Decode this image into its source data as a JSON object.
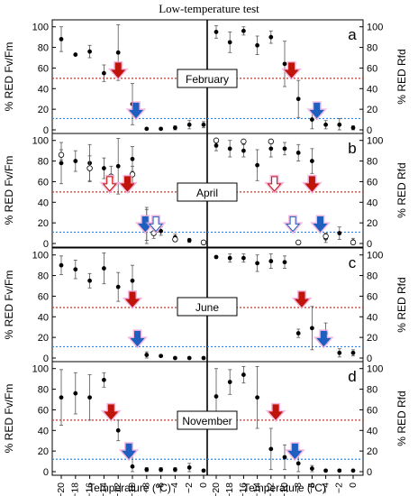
{
  "figure": {
    "title": "Low-temperature test",
    "xlabel": "Temperature (ºC)",
    "ylabel_left": "% RED Fv/Fm",
    "ylabel_right": "% RED Rfd",
    "colors": {
      "red_dotted": "#c0392b",
      "blue_dotted": "#2e86de",
      "red_arrow": "#c0140a",
      "blue_arrow": "#1f5fbf",
      "arrow_glow": "#f2a6d8"
    }
  },
  "chart_data": [
    {
      "panel_letter": "a",
      "month": "February",
      "type": "scatter",
      "x_ticks": [
        -20,
        -18,
        -16,
        -14,
        -12,
        -10,
        -8,
        -6,
        -4,
        -2,
        0
      ],
      "y_ticks": [
        0,
        20,
        40,
        60,
        80,
        100
      ],
      "ylim": [
        0,
        105
      ],
      "fvfm": [
        {
          "x": -20,
          "y": 88,
          "err": 12
        },
        {
          "x": -18,
          "y": 73,
          "err": 0
        },
        {
          "x": -16,
          "y": 76,
          "err": 6
        },
        {
          "x": -14,
          "y": 55,
          "err": 8
        },
        {
          "x": -12,
          "y": 75,
          "err": 27
        },
        {
          "x": -10,
          "y": 25,
          "err": 20
        },
        {
          "x": -8,
          "y": 1,
          "err": 0
        },
        {
          "x": -6,
          "y": 1,
          "err": 0
        },
        {
          "x": -4,
          "y": 2,
          "err": 2
        },
        {
          "x": -2,
          "y": 5,
          "err": 4
        },
        {
          "x": 0,
          "y": 5,
          "err": 3
        }
      ],
      "rfd": [
        {
          "x": -20,
          "y": 95,
          "err": 6
        },
        {
          "x": -18,
          "y": 85,
          "err": 10
        },
        {
          "x": -16,
          "y": 96,
          "err": 4
        },
        {
          "x": -14,
          "y": 82,
          "err": 9
        },
        {
          "x": -12,
          "y": 90,
          "err": 6
        },
        {
          "x": -10,
          "y": 64,
          "err": 22
        },
        {
          "x": -8,
          "y": 30,
          "err": 18
        },
        {
          "x": -6,
          "y": 10,
          "err": 9
        },
        {
          "x": -4,
          "y": 5,
          "err": 4
        },
        {
          "x": -2,
          "y": 5,
          "err": 6
        },
        {
          "x": 0,
          "y": 2,
          "err": 2
        }
      ],
      "red_line": 50,
      "blue_line": 11,
      "arrows_left": [
        {
          "x": -12,
          "color": "red"
        },
        {
          "x": -9.5,
          "color": "blue"
        }
      ],
      "arrows_right": [
        {
          "x": -9,
          "color": "red"
        },
        {
          "x": -5.3,
          "color": "blue"
        }
      ],
      "label_x": -6
    },
    {
      "panel_letter": "b",
      "month": "April",
      "type": "scatter",
      "x_ticks": [
        -20,
        -18,
        -16,
        -14,
        -12,
        -10,
        -8,
        -6,
        -4,
        -2,
        0
      ],
      "y_ticks": [
        0,
        20,
        40,
        60,
        80,
        100
      ],
      "ylim": [
        0,
        105
      ],
      "fvfm": [
        {
          "x": -20,
          "y": 78,
          "err": 20
        },
        {
          "x": -18,
          "y": 80,
          "err": 10
        },
        {
          "x": -16,
          "y": 78,
          "err": 18
        },
        {
          "x": -14,
          "y": 73,
          "err": 10
        },
        {
          "x": -12,
          "y": 75,
          "err": 27
        },
        {
          "x": -10,
          "y": 82,
          "err": 12
        },
        {
          "x": -8,
          "y": 15,
          "err": 20
        },
        {
          "x": -6,
          "y": 12,
          "err": 4
        },
        {
          "x": -4,
          "y": 6,
          "err": 3
        },
        {
          "x": -2,
          "y": 3,
          "err": 2
        },
        {
          "x": 0,
          "y": 1,
          "err": 0
        }
      ],
      "fvfm_open": [
        {
          "x": -20,
          "y": 86,
          "err": 5
        },
        {
          "x": -16,
          "y": 73,
          "err": 12
        },
        {
          "x": -13,
          "y": 65,
          "err": 10
        },
        {
          "x": -10,
          "y": 67,
          "err": 8
        },
        {
          "x": -8,
          "y": 18,
          "err": 15
        },
        {
          "x": -7,
          "y": 10,
          "err": 5
        },
        {
          "x": -4,
          "y": 4,
          "err": 2
        },
        {
          "x": 0,
          "y": 1,
          "err": 0
        }
      ],
      "rfd": [
        {
          "x": -20,
          "y": 95,
          "err": 5
        },
        {
          "x": -18,
          "y": 92,
          "err": 8
        },
        {
          "x": -16,
          "y": 90,
          "err": 6
        },
        {
          "x": -14,
          "y": 76,
          "err": 15
        },
        {
          "x": -12,
          "y": 92,
          "err": 8
        },
        {
          "x": -10,
          "y": 92,
          "err": 6
        },
        {
          "x": -8,
          "y": 88,
          "err": 8
        },
        {
          "x": -6,
          "y": 80,
          "err": 12
        },
        {
          "x": -4,
          "y": 5,
          "err": 4
        },
        {
          "x": -2,
          "y": 10,
          "err": 6
        },
        {
          "x": 0,
          "y": 2,
          "err": 3
        }
      ],
      "rfd_open": [
        {
          "x": -20,
          "y": 100,
          "err": 0
        },
        {
          "x": -16,
          "y": 99,
          "err": 0
        },
        {
          "x": -12,
          "y": 99,
          "err": 2
        },
        {
          "x": -8,
          "y": 1,
          "err": 0
        },
        {
          "x": -4,
          "y": 7,
          "err": 3
        },
        {
          "x": 0,
          "y": 1,
          "err": 0
        }
      ],
      "red_line": 50,
      "blue_line": 11,
      "arrows_left": [
        {
          "x": -13.2,
          "color": "red_open"
        },
        {
          "x": -10.7,
          "color": "red"
        },
        {
          "x": -8.2,
          "color": "blue"
        },
        {
          "x": -6.7,
          "color": "blue_open"
        }
      ],
      "arrows_right": [
        {
          "x": -11.5,
          "color": "red_open"
        },
        {
          "x": -6,
          "color": "red"
        },
        {
          "x": -8.8,
          "color": "blue_open"
        },
        {
          "x": -4.8,
          "color": "blue"
        }
      ],
      "label_x": -6
    },
    {
      "panel_letter": "c",
      "month": "June",
      "type": "scatter",
      "x_ticks": [
        -20,
        -18,
        -16,
        -14,
        -12,
        -10,
        -8,
        -6,
        -4,
        -2,
        0
      ],
      "y_ticks": [
        0,
        20,
        40,
        60,
        80,
        100
      ],
      "ylim": [
        0,
        105
      ],
      "fvfm": [
        {
          "x": -20,
          "y": 90,
          "err": 9
        },
        {
          "x": -18,
          "y": 86,
          "err": 9
        },
        {
          "x": -16,
          "y": 75,
          "err": 7
        },
        {
          "x": -14,
          "y": 87,
          "err": 15
        },
        {
          "x": -12,
          "y": 69,
          "err": 14
        },
        {
          "x": -10,
          "y": 75,
          "err": 15
        },
        {
          "x": -8,
          "y": 3,
          "err": 3
        },
        {
          "x": -6,
          "y": 2,
          "err": 1
        },
        {
          "x": -4,
          "y": 0,
          "err": 0
        },
        {
          "x": -2,
          "y": 0,
          "err": 0
        },
        {
          "x": 0,
          "y": 0,
          "err": 0
        }
      ],
      "rfd": [
        {
          "x": -20,
          "y": 98,
          "err": 1
        },
        {
          "x": -18,
          "y": 97,
          "err": 4
        },
        {
          "x": -16,
          "y": 97,
          "err": 4
        },
        {
          "x": -14,
          "y": 92,
          "err": 8
        },
        {
          "x": -12,
          "y": 94,
          "err": 7
        },
        {
          "x": -10,
          "y": 93,
          "err": 6
        },
        {
          "x": -8,
          "y": 24,
          "err": 4
        },
        {
          "x": -6,
          "y": 29,
          "err": 21
        },
        {
          "x": -4,
          "y": 24,
          "err": 10
        },
        {
          "x": -2,
          "y": 5,
          "err": 4
        },
        {
          "x": 0,
          "y": 5,
          "err": 3
        }
      ],
      "red_line": 49,
      "blue_line": 11,
      "arrows_left": [
        {
          "x": -10,
          "color": "red"
        },
        {
          "x": -9.3,
          "color": "blue"
        }
      ],
      "arrows_right": [
        {
          "x": -7.5,
          "color": "red"
        },
        {
          "x": -4.3,
          "color": "blue"
        }
      ],
      "label_x": -6
    },
    {
      "panel_letter": "d",
      "month": "November",
      "type": "scatter",
      "x_ticks": [
        -20,
        -18,
        -16,
        -14,
        -12,
        -10,
        -8,
        -6,
        -4,
        -2,
        0
      ],
      "y_ticks": [
        0,
        20,
        40,
        60,
        80,
        100
      ],
      "ylim": [
        0,
        105
      ],
      "fvfm": [
        {
          "x": -20,
          "y": 72,
          "err": 27
        },
        {
          "x": -18,
          "y": 76,
          "err": 20
        },
        {
          "x": -16,
          "y": 72,
          "err": 22
        },
        {
          "x": -14,
          "y": 89,
          "err": 7
        },
        {
          "x": -12,
          "y": 40,
          "err": 10
        },
        {
          "x": -10,
          "y": 5,
          "err": 15
        },
        {
          "x": -8,
          "y": 2,
          "err": 2
        },
        {
          "x": -6,
          "y": 2,
          "err": 2
        },
        {
          "x": -4,
          "y": 2,
          "err": 2
        },
        {
          "x": -2,
          "y": 4,
          "err": 4
        },
        {
          "x": 0,
          "y": 1,
          "err": 1
        }
      ],
      "rfd": [
        {
          "x": -20,
          "y": 73,
          "err": 27
        },
        {
          "x": -18,
          "y": 87,
          "err": 12
        },
        {
          "x": -16,
          "y": 94,
          "err": 8
        },
        {
          "x": -14,
          "y": 72,
          "err": 30
        },
        {
          "x": -12,
          "y": 22,
          "err": 20
        },
        {
          "x": -10,
          "y": 14,
          "err": 12
        },
        {
          "x": -8,
          "y": 8,
          "err": 8
        },
        {
          "x": -6,
          "y": 3,
          "err": 3
        },
        {
          "x": -4,
          "y": 1,
          "err": 1
        },
        {
          "x": -2,
          "y": 1,
          "err": 1
        },
        {
          "x": 0,
          "y": 1,
          "err": 0
        }
      ],
      "red_line": 50,
      "blue_line": 12,
      "arrows_left": [
        {
          "x": -13,
          "color": "red"
        },
        {
          "x": -10.5,
          "color": "blue"
        }
      ],
      "arrows_right": [
        {
          "x": -11.3,
          "color": "red"
        },
        {
          "x": -8.5,
          "color": "blue"
        }
      ],
      "label_x": -6
    }
  ]
}
